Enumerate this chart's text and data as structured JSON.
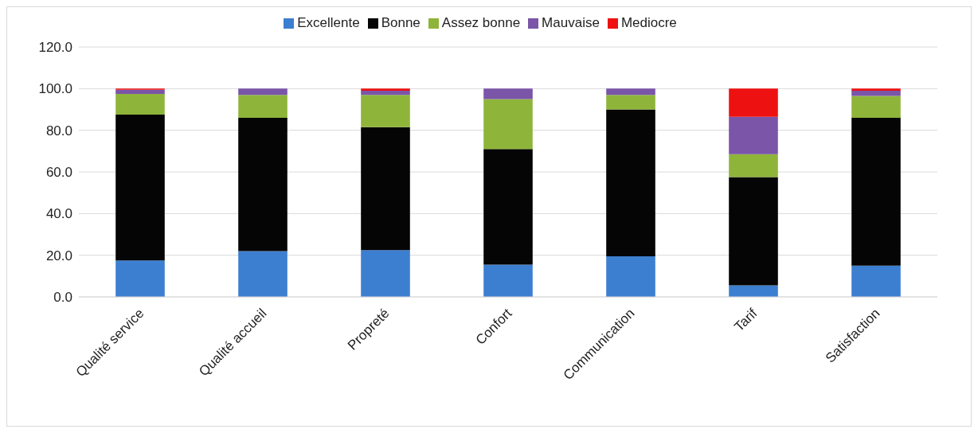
{
  "chart_data": {
    "type": "bar",
    "stacked": true,
    "categories": [
      "Qualité service",
      "Qualité accueil",
      "Propreté",
      "Confort",
      "Communication",
      "Tarif",
      "Satisfaction"
    ],
    "series": [
      {
        "name": "Excellente",
        "color": "#3c7fd0",
        "values": [
          17.5,
          22,
          22.5,
          15.5,
          19.5,
          5.5,
          15
        ]
      },
      {
        "name": "Bonne",
        "color": "#050505",
        "values": [
          70,
          64,
          59,
          55.5,
          70.5,
          52,
          71
        ]
      },
      {
        "name": "Assez bonne",
        "color": "#8fb43a",
        "values": [
          10,
          11,
          15.5,
          24,
          7,
          11,
          10.5
        ]
      },
      {
        "name": "Mauvaise",
        "color": "#7a55a8",
        "values": [
          2,
          3,
          2,
          5,
          3,
          18,
          2.5
        ]
      },
      {
        "name": "Mediocre",
        "color": "#ee1111",
        "values": [
          0.5,
          0,
          1,
          0,
          0,
          13.5,
          1
        ]
      }
    ],
    "ylim": [
      0,
      120
    ],
    "yticks": [
      {
        "value": 0,
        "label": "0.0"
      },
      {
        "value": 20,
        "label": "20.0"
      },
      {
        "value": 40,
        "label": "40.0"
      },
      {
        "value": 60,
        "label": "60.0"
      },
      {
        "value": 80,
        "label": "80.0"
      },
      {
        "value": 100,
        "label": "100.0"
      },
      {
        "value": 120,
        "label": "120.0"
      }
    ],
    "grid": "y",
    "legend": "top"
  }
}
